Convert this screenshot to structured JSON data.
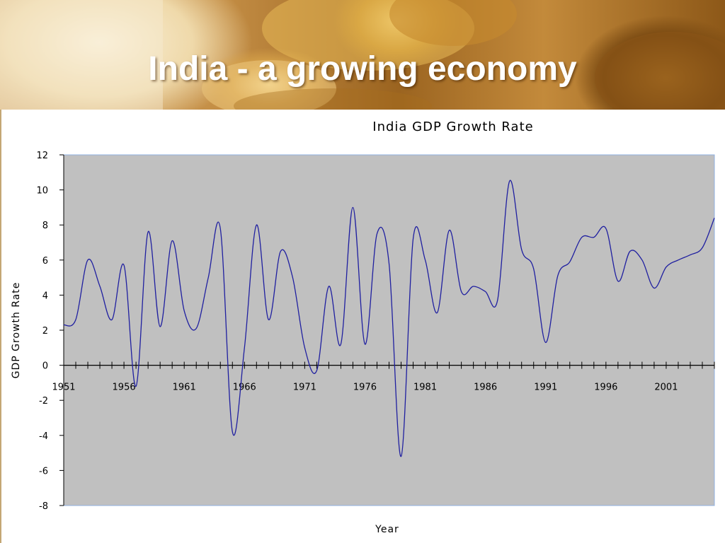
{
  "slide": {
    "title": "India - a growing economy"
  },
  "chart_data": {
    "type": "line",
    "title": "India GDP Growth Rate",
    "xlabel": "Year",
    "ylabel": "GDP Growth Rate",
    "xlim": [
      1951,
      2005
    ],
    "ylim": [
      -8,
      12
    ],
    "y_ticks": [
      12,
      10,
      8,
      6,
      4,
      2,
      0,
      -2,
      -4,
      -6,
      -8
    ],
    "x_tick_labels": [
      "1951",
      "1956",
      "1961",
      "1966",
      "1971",
      "1976",
      "1981",
      "1986",
      "1991",
      "1996",
      "2001"
    ],
    "x_tick_years": [
      1951,
      1956,
      1961,
      1966,
      1971,
      1976,
      1981,
      1986,
      1991,
      1996,
      2001
    ],
    "grid": false,
    "plot_background": "#c0c0c0",
    "line_color": "#1f1fa0",
    "series": [
      {
        "x": [
          1951,
          1952,
          1953,
          1954,
          1955,
          1956,
          1957,
          1958,
          1959,
          1960,
          1961,
          1962,
          1963,
          1964,
          1965,
          1966,
          1967,
          1968,
          1969,
          1970,
          1971,
          1972,
          1973,
          1974,
          1975,
          1976,
          1977,
          1978,
          1979,
          1980,
          1981,
          1982,
          1983,
          1984,
          1985,
          1986,
          1987,
          1988,
          1989,
          1990,
          1991,
          1992,
          1993,
          1994,
          1995,
          1996,
          1997,
          1998,
          1999,
          2000,
          2001,
          2002,
          2003,
          2004,
          2005
        ],
        "values": [
          2.3,
          2.6,
          6.0,
          4.5,
          2.6,
          5.7,
          -1.2,
          7.6,
          2.2,
          7.1,
          3.1,
          2.1,
          5.0,
          7.8,
          -3.8,
          1.0,
          8.0,
          2.6,
          6.5,
          5.0,
          1.0,
          -0.3,
          4.5,
          1.2,
          9.0,
          1.2,
          7.5,
          5.8,
          -5.2,
          7.2,
          6.0,
          3.0,
          7.7,
          4.2,
          4.5,
          4.2,
          3.7,
          10.5,
          6.6,
          5.5,
          1.3,
          5.1,
          5.9,
          7.3,
          7.3,
          7.8,
          4.8,
          6.5,
          6.0,
          4.4,
          5.6,
          6.0,
          6.3,
          6.7,
          8.4
        ]
      }
    ]
  }
}
